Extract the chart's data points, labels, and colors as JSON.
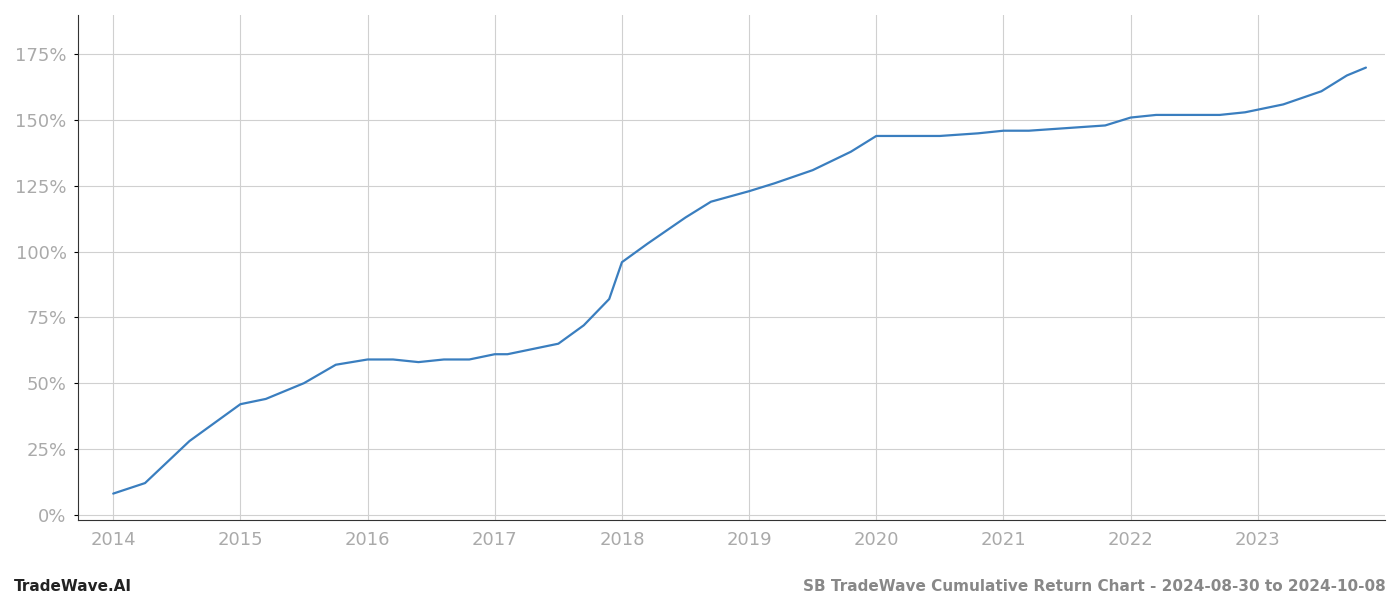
{
  "x_values": [
    2014.0,
    2014.25,
    2014.6,
    2015.0,
    2015.2,
    2015.5,
    2015.75,
    2016.0,
    2016.2,
    2016.4,
    2016.6,
    2016.8,
    2017.0,
    2017.1,
    2017.3,
    2017.5,
    2017.7,
    2017.9,
    2018.0,
    2018.2,
    2018.5,
    2018.7,
    2019.0,
    2019.2,
    2019.5,
    2019.8,
    2020.0,
    2020.1,
    2020.3,
    2020.5,
    2020.8,
    2021.0,
    2021.2,
    2021.5,
    2021.8,
    2022.0,
    2022.2,
    2022.5,
    2022.7,
    2022.9,
    2023.0,
    2023.2,
    2023.5,
    2023.7,
    2023.85
  ],
  "y_values": [
    8,
    12,
    28,
    42,
    44,
    50,
    57,
    59,
    59,
    58,
    59,
    59,
    61,
    61,
    63,
    65,
    72,
    82,
    96,
    103,
    113,
    119,
    123,
    126,
    131,
    138,
    144,
    144,
    144,
    144,
    145,
    146,
    146,
    147,
    148,
    151,
    152,
    152,
    152,
    153,
    154,
    156,
    161,
    167,
    170
  ],
  "line_color": "#3a7ebf",
  "line_width": 1.6,
  "background_color": "#ffffff",
  "grid_color": "#d0d0d0",
  "tick_color": "#aaaaaa",
  "ylabel_values": [
    0,
    25,
    50,
    75,
    100,
    125,
    150,
    175
  ],
  "x_tick_labels": [
    "2014",
    "2015",
    "2016",
    "2017",
    "2018",
    "2019",
    "2020",
    "2021",
    "2022",
    "2023"
  ],
  "x_tick_positions": [
    2014,
    2015,
    2016,
    2017,
    2018,
    2019,
    2020,
    2021,
    2022,
    2023
  ],
  "ylim": [
    -2,
    190
  ],
  "xlim": [
    2013.72,
    2024.0
  ],
  "footer_left": "TradeWave.AI",
  "footer_right": "SB TradeWave Cumulative Return Chart - 2024-08-30 to 2024-10-08",
  "footer_color": "#888888",
  "footer_left_color": "#222222",
  "footer_fontsize": 11,
  "tick_fontsize": 13,
  "spine_color": "#333333",
  "left_spine_color": "#333333"
}
